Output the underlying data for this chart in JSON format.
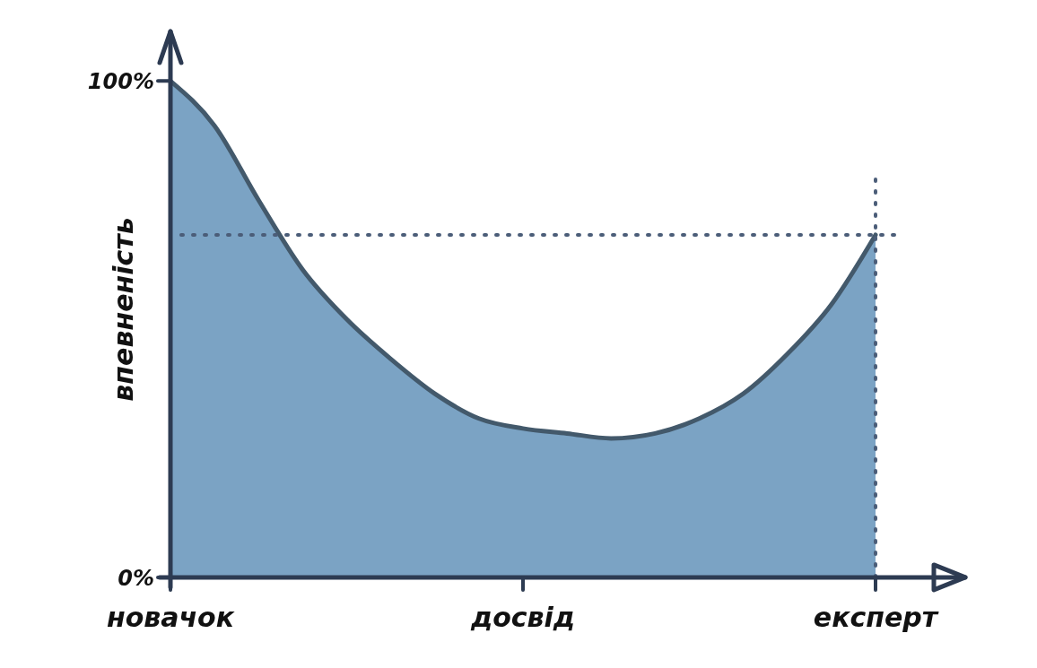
{
  "chart_data": {
    "type": "area",
    "ylabel": "впевненість",
    "categories": [
      "новачок",
      null,
      null,
      null,
      null,
      null,
      null,
      null,
      "досвід",
      null,
      null,
      null,
      null,
      null,
      null,
      null,
      "експерт"
    ],
    "series": [
      {
        "color": "#7ba3c4",
        "values": [
          100,
          91,
          76,
          62,
          52,
          44,
          37,
          32,
          30,
          29,
          28,
          29,
          32,
          37,
          45,
          55,
          69
        ]
      }
    ],
    "ylim": [
      -2,
      110
    ],
    "yticks": [
      {
        "value": 0,
        "label": "0%"
      },
      {
        "value": 100,
        "label": "100%"
      }
    ],
    "ref_lines": [
      {
        "axis": "y",
        "value": 69,
        "color": "#4b5d78",
        "line_style": "dotted"
      },
      {
        "axis": "x",
        "value": "експерт",
        "color": "#4b5d78",
        "line_style": "dotted"
      }
    ],
    "grid": false
  }
}
